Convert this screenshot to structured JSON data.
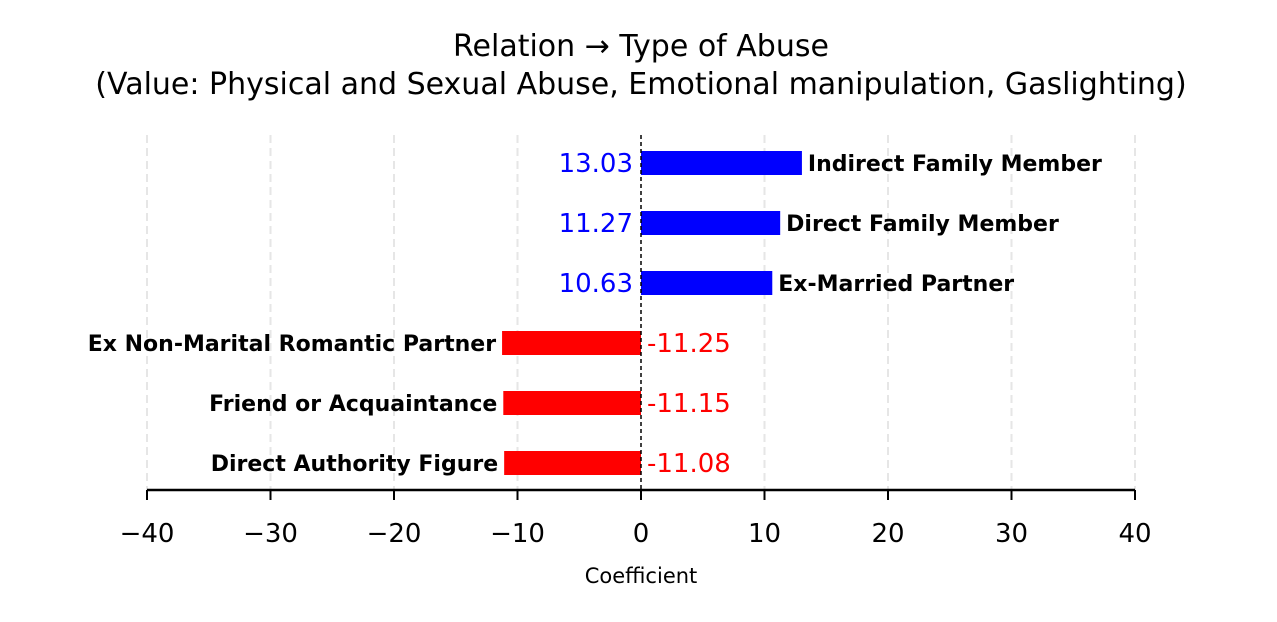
{
  "chart_data": {
    "type": "bar",
    "orientation": "horizontal",
    "title": "Relation → Type of Abuse",
    "subtitle": "(Value: Physical and Sexual Abuse, Emotional manipulation, Gaslighting)",
    "xlabel": "Coefficient",
    "ylabel": "",
    "xlim": [
      -40,
      40
    ],
    "xticks": [
      -40,
      -30,
      -20,
      -10,
      0,
      10,
      20,
      30,
      40
    ],
    "xtick_labels": [
      "−40",
      "−30",
      "−20",
      "−10",
      "0",
      "10",
      "20",
      "30",
      "40"
    ],
    "grid": "vertical dashed",
    "categories": [
      "Indirect Family Member",
      "Direct Family Member",
      "Ex-Married Partner",
      "Ex Non-Marital Romantic Partner",
      "Friend or Acquaintance",
      "Direct Authority Figure"
    ],
    "values": [
      13.03,
      11.27,
      10.63,
      -11.25,
      -11.15,
      -11.08
    ],
    "value_labels": [
      "13.03",
      "11.27",
      "10.63",
      "-11.25",
      "-11.15",
      "-11.08"
    ],
    "colors": {
      "positive": "#0000ff",
      "negative": "#ff0000",
      "zero_line": "#000000",
      "grid": "#e6e6e6"
    }
  }
}
